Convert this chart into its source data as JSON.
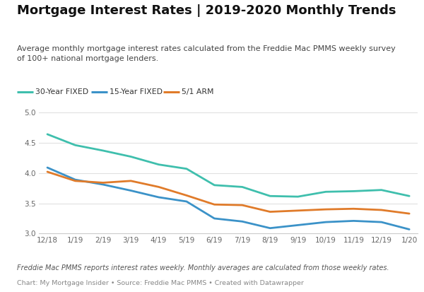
{
  "title": "Mortgage Interest Rates | 2019-2020 Monthly Trends",
  "subtitle": "Average monthly mortgage interest rates calculated from the Freddie Mac PMMS weekly survey\nof 100+ national mortgage lenders.",
  "footnote1": "Freddie Mac PMMS reports interest rates weekly. Monthly averages are calculated from those weekly rates.",
  "footnote2": "Chart: My Mortgage Insider • Source: Freddie Mac PMMS • Created with Datawrapper",
  "x_labels": [
    "12/18",
    "1/19",
    "2/19",
    "3/19",
    "4/19",
    "5/19",
    "6/19",
    "7/19",
    "8/19",
    "9/19",
    "10/19",
    "11/19",
    "12/19",
    "1/20"
  ],
  "y30": [
    4.64,
    4.46,
    4.37,
    4.27,
    4.14,
    4.07,
    3.8,
    3.77,
    3.62,
    3.61,
    3.69,
    3.7,
    3.72,
    3.62
  ],
  "y15": [
    4.09,
    3.89,
    3.81,
    3.71,
    3.6,
    3.53,
    3.25,
    3.2,
    3.09,
    3.14,
    3.19,
    3.21,
    3.19,
    3.07
  ],
  "y51": [
    4.02,
    3.87,
    3.84,
    3.87,
    3.77,
    3.63,
    3.48,
    3.47,
    3.36,
    3.38,
    3.4,
    3.41,
    3.39,
    3.33
  ],
  "color_30": "#3fbfad",
  "color_15": "#3b92c8",
  "color_51": "#e07b2a",
  "ylim": [
    3.0,
    5.0
  ],
  "yticks": [
    3.0,
    3.5,
    4.0,
    4.5,
    5.0
  ],
  "bg_color": "#ffffff",
  "plot_bg": "#ffffff",
  "legend_labels": [
    "30-Year FIXED",
    "15-Year FIXED",
    "5/1 ARM"
  ],
  "legend_offsets": [
    0.0,
    0.175,
    0.345
  ]
}
